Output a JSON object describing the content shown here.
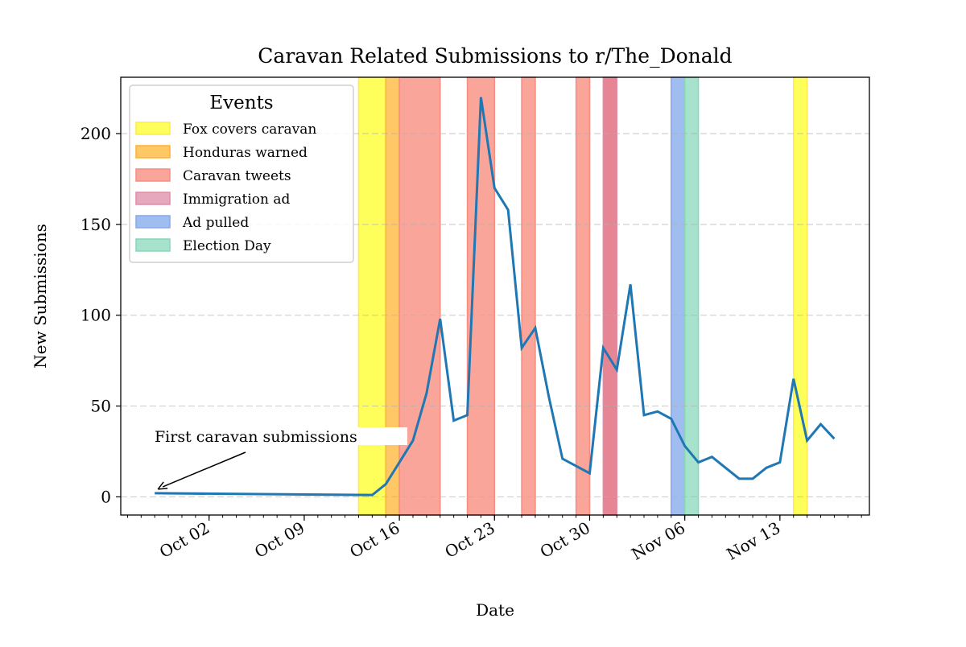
{
  "chart_data": {
    "type": "line",
    "title": "Caravan Related Submissions to r/The_Donald",
    "xlabel": "Date",
    "ylabel": "New Submissions",
    "xlim": [
      "2018-09-25T12:00",
      "2018-11-19T14:00"
    ],
    "ylim": [
      -10,
      231
    ],
    "yticks": [
      0,
      50,
      100,
      150,
      200
    ],
    "xticks": [
      {
        "date": "2018-10-02",
        "label": "Oct 02"
      },
      {
        "date": "2018-10-09",
        "label": "Oct 09"
      },
      {
        "date": "2018-10-16",
        "label": "Oct 16"
      },
      {
        "date": "2018-10-23",
        "label": "Oct 23"
      },
      {
        "date": "2018-10-30",
        "label": "Oct 30"
      },
      {
        "date": "2018-11-06",
        "label": "Nov 06"
      },
      {
        "date": "2018-11-13",
        "label": "Nov 13"
      }
    ],
    "grid": "y-dashed",
    "line_color": "#1f77b4",
    "series": [
      {
        "name": "New Submissions",
        "x": [
          "2018-09-28",
          "2018-10-14",
          "2018-10-15",
          "2018-10-16",
          "2018-10-17",
          "2018-10-18",
          "2018-10-19",
          "2018-10-20",
          "2018-10-21",
          "2018-10-22",
          "2018-10-23",
          "2018-10-24",
          "2018-10-25",
          "2018-10-26",
          "2018-10-27",
          "2018-10-28",
          "2018-10-29",
          "2018-10-30",
          "2018-10-31",
          "2018-11-01",
          "2018-11-02",
          "2018-11-03",
          "2018-11-04",
          "2018-11-05",
          "2018-11-06",
          "2018-11-07",
          "2018-11-08",
          "2018-11-09",
          "2018-11-10",
          "2018-11-11",
          "2018-11-12",
          "2018-11-13",
          "2018-11-14",
          "2018-11-15",
          "2018-11-16",
          "2018-11-17"
        ],
        "values": [
          2,
          1,
          7,
          19,
          31,
          57,
          98,
          42,
          45,
          220,
          170,
          158,
          82,
          93,
          55,
          21,
          17,
          13,
          82,
          70,
          117,
          45,
          47,
          43,
          28,
          19,
          22,
          16,
          10,
          10,
          16,
          19,
          65,
          31,
          40,
          32
        ]
      }
    ],
    "legend": {
      "title": "Events",
      "placement": "upper-left",
      "entries": [
        {
          "label": "Fox covers caravan",
          "fill": "#ffff5c",
          "edge": "#ffe94d"
        },
        {
          "label": "Honduras warned",
          "fill": "#ffc766",
          "edge": "#ffb133"
        },
        {
          "label": "Caravan tweets",
          "fill": "#f9a59a",
          "edge": "#f88c80"
        },
        {
          "label": "Immigration ad",
          "fill": "#e6a8bc",
          "edge": "#e08aa5"
        },
        {
          "label": "Ad pulled",
          "fill": "#a0bdf0",
          "edge": "#86a8ec"
        },
        {
          "label": "Election Day",
          "fill": "#a6e2cc",
          "edge": "#86d6b8"
        }
      ]
    },
    "spans": [
      {
        "event": 0,
        "start": "2018-10-13",
        "end": "2018-10-15",
        "fill": "#ffff5c"
      },
      {
        "event": 1,
        "start": "2018-10-15",
        "end": "2018-10-16",
        "fill": "#ffc766"
      },
      {
        "event": 2,
        "start": "2018-10-16",
        "end": "2018-10-19",
        "fill": "#f9a59a"
      },
      {
        "event": 2,
        "start": "2018-10-21",
        "end": "2018-10-23",
        "fill": "#f9a59a"
      },
      {
        "event": 2,
        "start": "2018-10-25",
        "end": "2018-10-26",
        "fill": "#f9a59a"
      },
      {
        "event": 2,
        "start": "2018-10-29",
        "end": "2018-10-30",
        "fill": "#f9a59a"
      },
      {
        "event": 3,
        "start": "2018-10-31",
        "end": "2018-11-01",
        "fill": "#e68593"
      },
      {
        "event": 4,
        "start": "2018-11-05",
        "end": "2018-11-06",
        "fill": "#a0bdf0"
      },
      {
        "event": 5,
        "start": "2018-11-06",
        "end": "2018-11-07",
        "fill": "#a6e2cc"
      },
      {
        "event": 0,
        "start": "2018-11-14",
        "end": "2018-11-15",
        "fill": "#ffff5c"
      }
    ],
    "annotation": {
      "text": "First caravan submissions",
      "x": "2018-09-28",
      "y": 2,
      "text_x": "2018-09-28",
      "text_y": 32
    }
  }
}
